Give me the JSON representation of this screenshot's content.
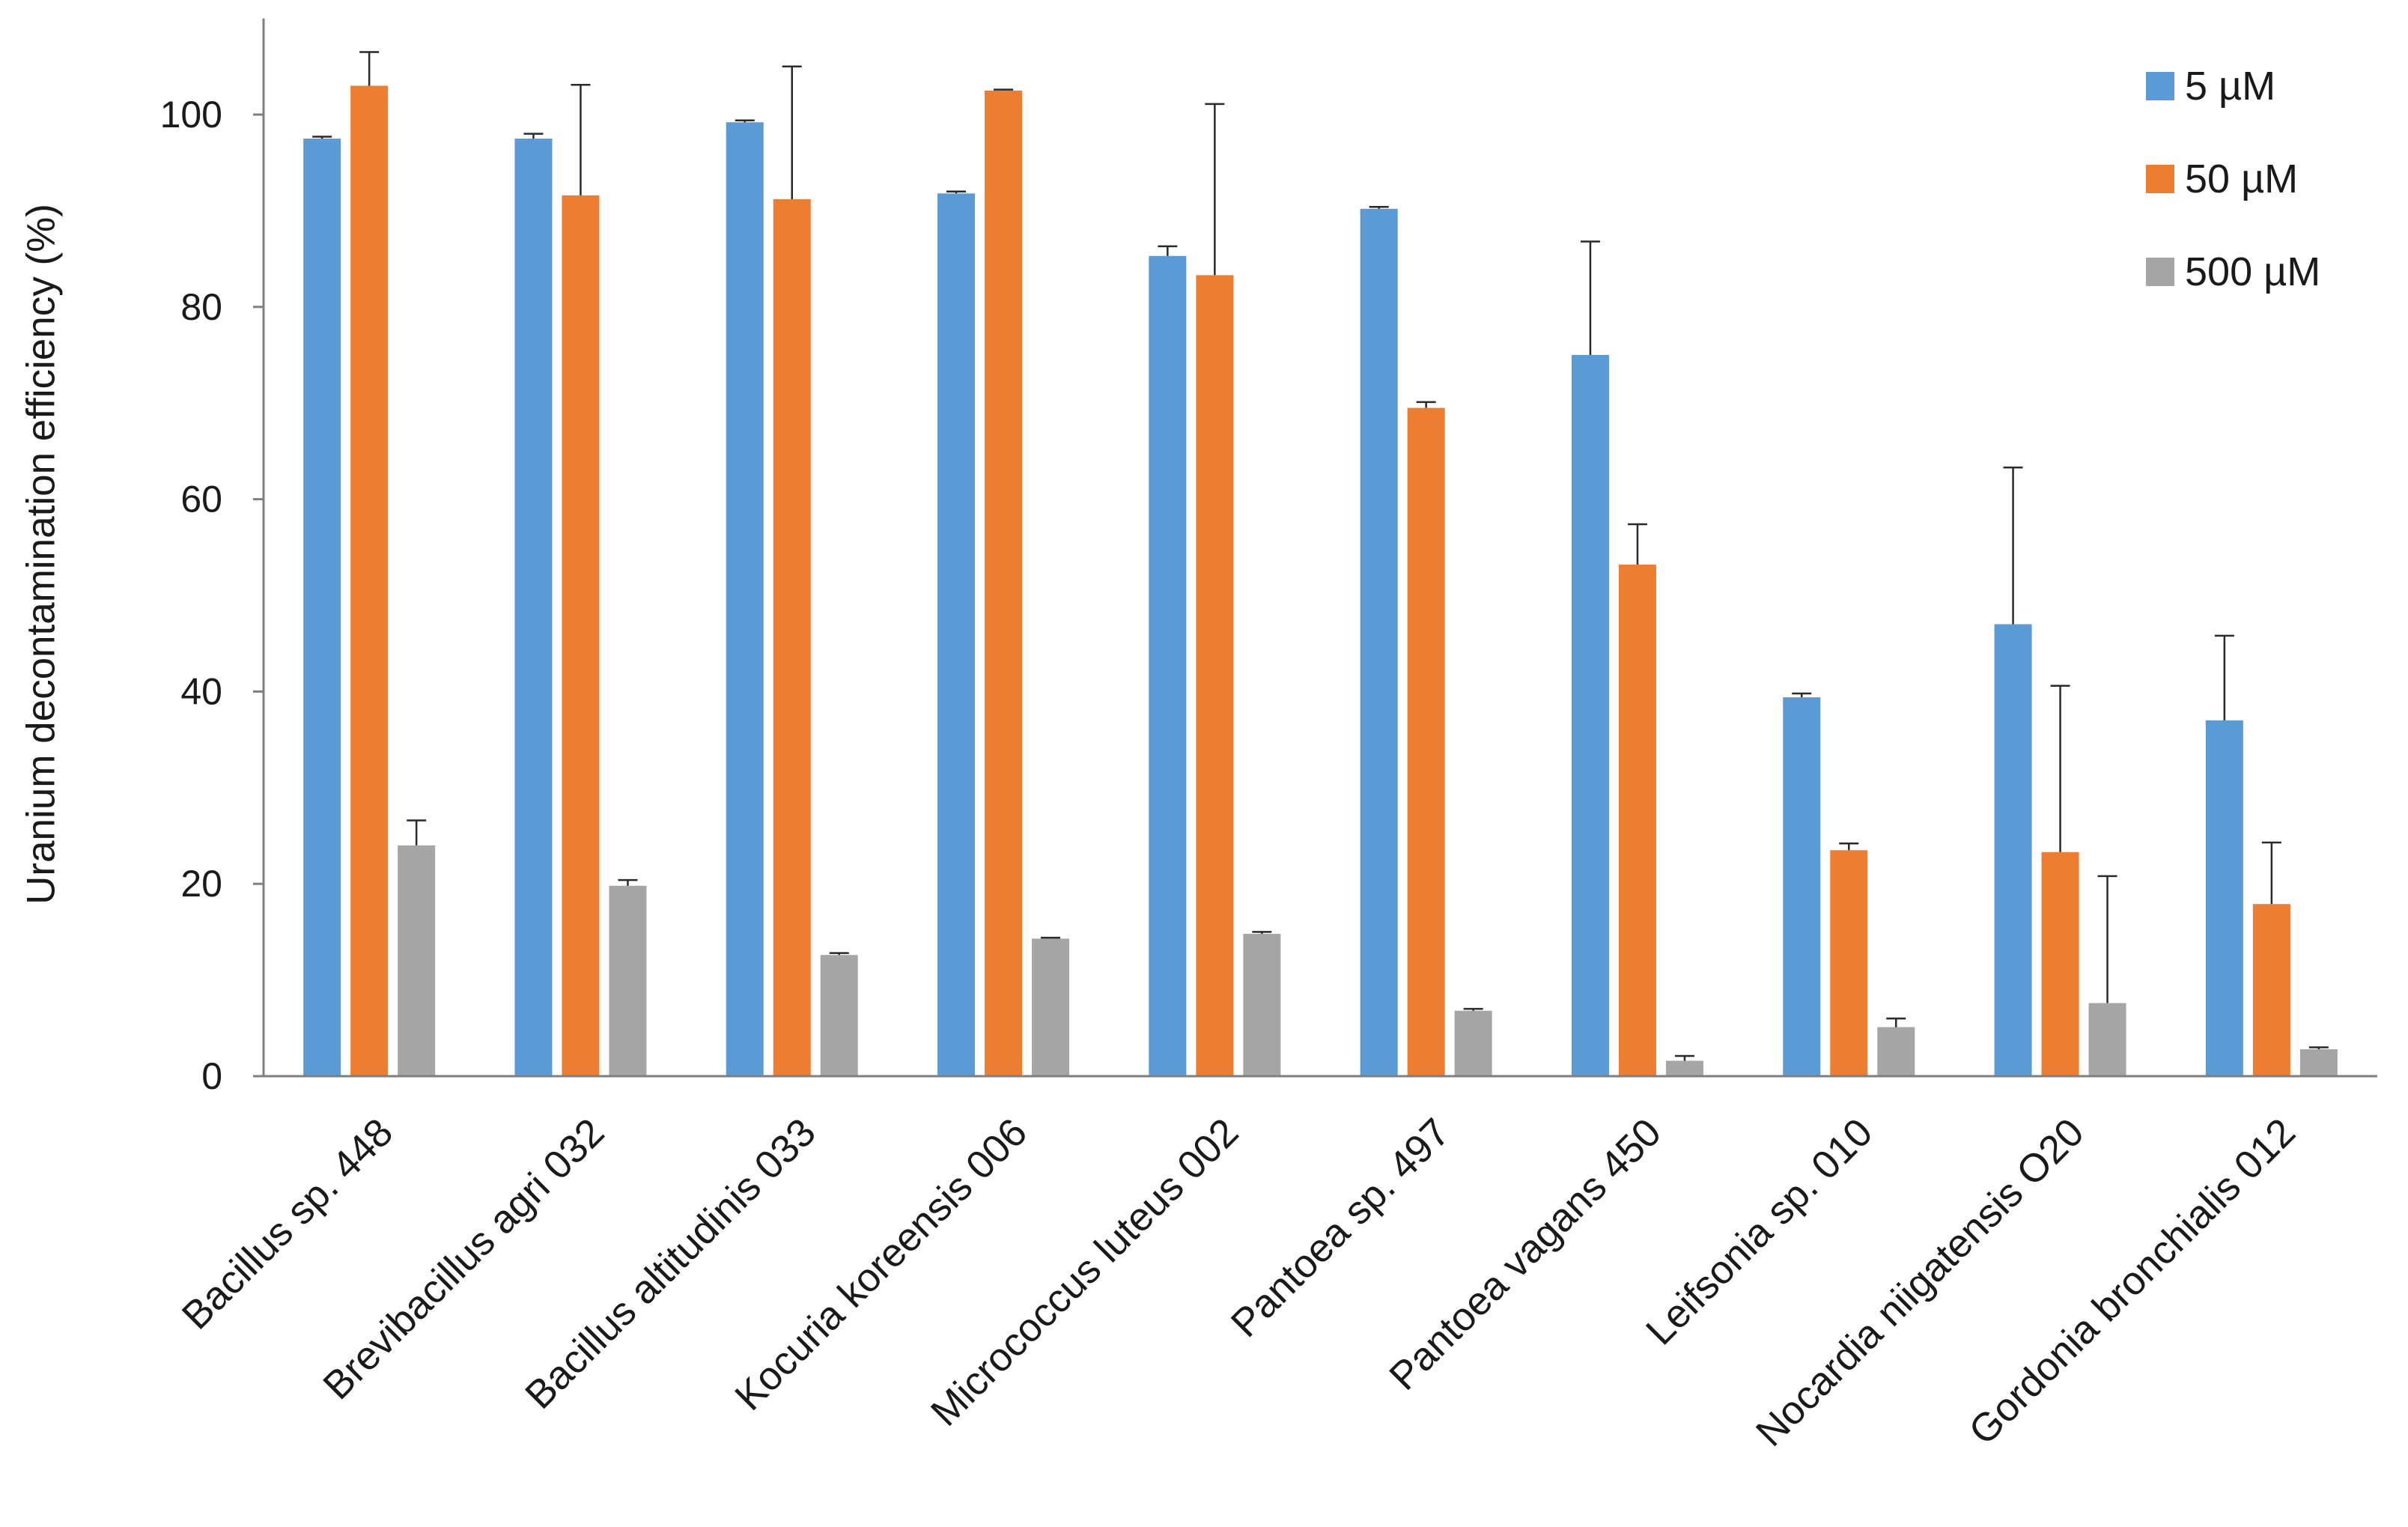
{
  "chart_data": {
    "type": "bar",
    "title": "",
    "xlabel": "",
    "ylabel": "Uranium decontamination efficiency  (%)",
    "ylim": [
      0,
      110
    ],
    "yticks": [
      0,
      20,
      40,
      60,
      80,
      100
    ],
    "grid": false,
    "legend_position": "top-right",
    "categories": [
      "Bacillus sp. 448",
      "Brevibacillus agri 032",
      "Bacillus altitudinis 033",
      "Kocuria koreensis 006",
      "Micrococcus luteus 002",
      "Pantoea sp. 497",
      "Pantoea vagans 450",
      "Leifsonia sp. 010",
      "Nocardia niigatensis O20",
      "Gordonia bronchialis 012"
    ],
    "series": [
      {
        "name": "5 µM",
        "color": "#5B9BD5",
        "values": [
          97.5,
          97.5,
          99.2,
          91.8,
          85.3,
          90.2,
          75.0,
          39.4,
          47.0,
          37.0
        ],
        "errors": [
          0.2,
          0.5,
          0.2,
          0.2,
          1.0,
          0.2,
          11.8,
          0.4,
          16.3,
          8.8
        ]
      },
      {
        "name": "50 µM",
        "color": "#ED7D31",
        "values": [
          103.0,
          91.6,
          91.2,
          102.5,
          83.3,
          69.5,
          53.2,
          23.5,
          23.3,
          17.9
        ],
        "errors": [
          3.5,
          11.5,
          13.8,
          0.1,
          17.8,
          0.6,
          4.2,
          0.7,
          17.3,
          6.4
        ]
      },
      {
        "name": "500 µM",
        "color": "#A5A5A5",
        "values": [
          24.0,
          19.8,
          12.6,
          14.3,
          14.8,
          6.8,
          1.6,
          5.1,
          7.6,
          2.8
        ],
        "errors": [
          2.6,
          0.6,
          0.2,
          0.1,
          0.2,
          0.2,
          0.5,
          0.9,
          13.2,
          0.2
        ]
      }
    ]
  }
}
